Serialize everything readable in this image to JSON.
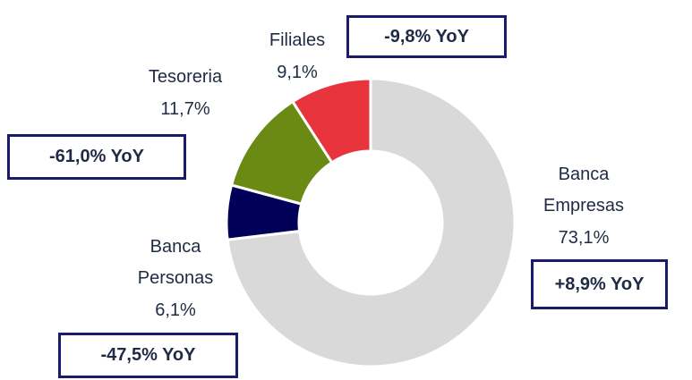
{
  "chart_data": {
    "type": "donut",
    "categories": [
      "Banca Empresas",
      "Banca Personas",
      "Tesoreria",
      "Filiales"
    ],
    "values": [
      73.1,
      6.1,
      11.7,
      9.1
    ],
    "value_labels": [
      "73,1%",
      "6,1%",
      "11,7%",
      "9,1%"
    ],
    "colors": [
      "#d9d9d9",
      "#000058",
      "#6b8a14",
      "#e8353d"
    ],
    "annotations": [
      "+8,9% YoY",
      "-47,5% YoY",
      "-61,0% YoY",
      "-9,8% YoY"
    ]
  }
}
